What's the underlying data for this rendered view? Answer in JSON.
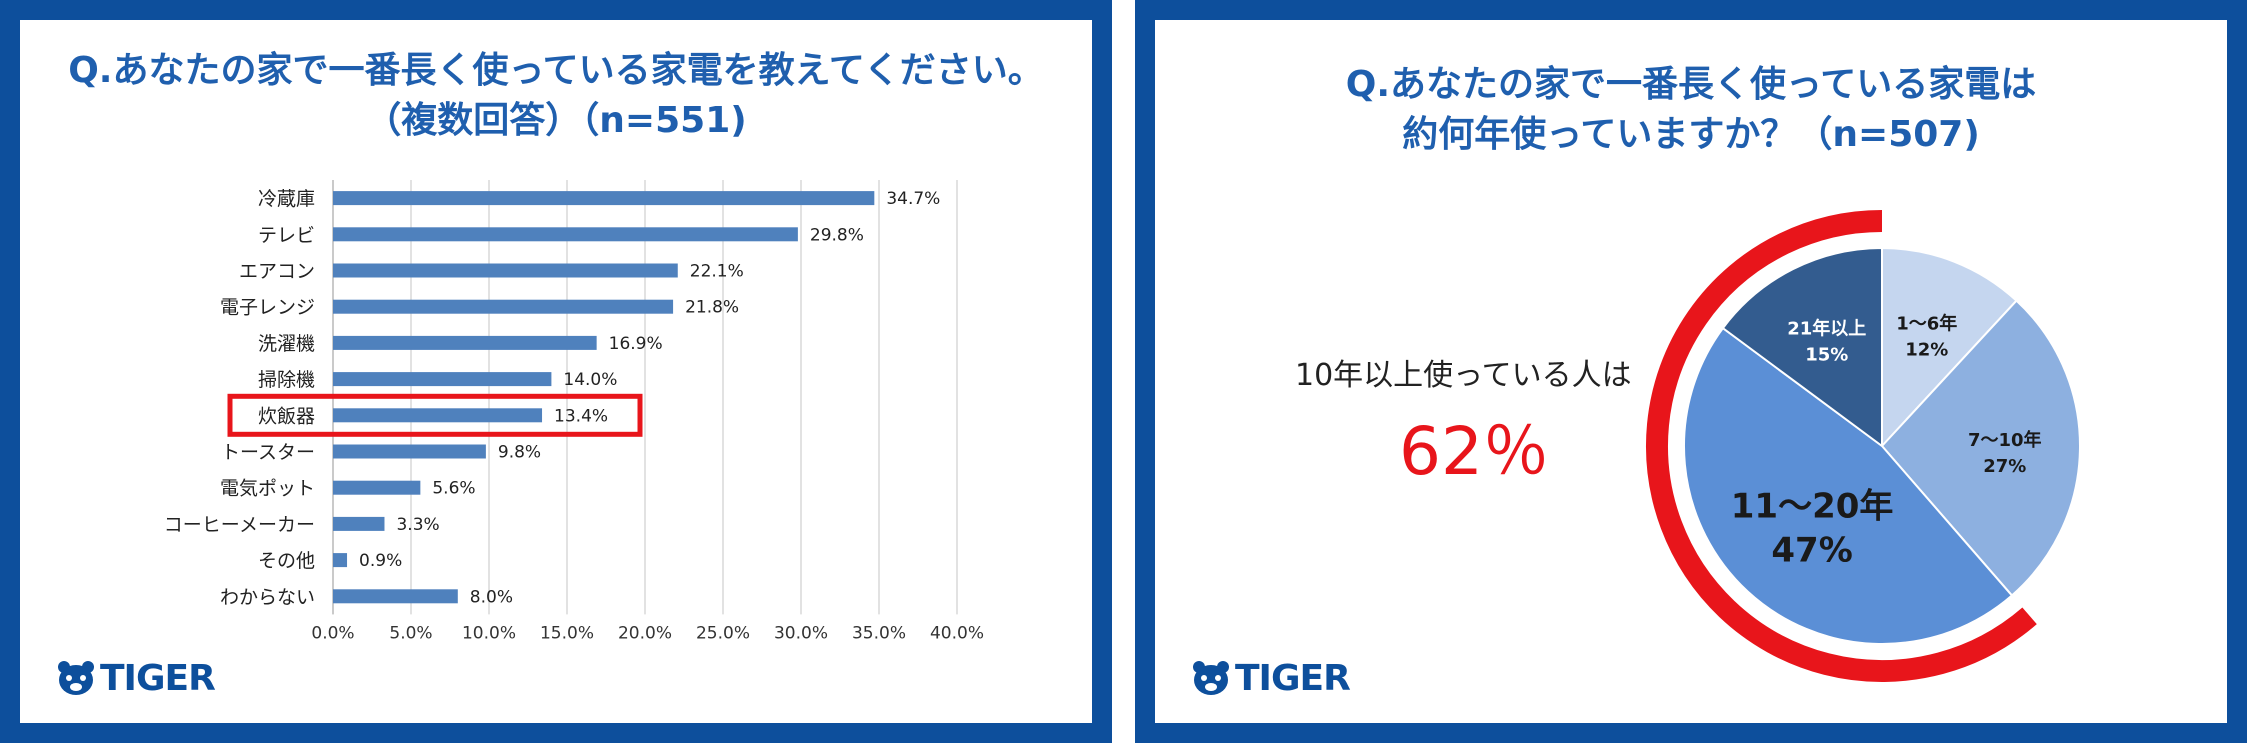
{
  "left": {
    "title_line1": "Q.あなたの家で一番長く使っている家電を教えてください。",
    "title_line2": "（複数回答）（n=551)"
  },
  "right": {
    "title_line1": "Q.あなたの家で一番長く使っている家電は",
    "title_line2": "約何年使っていますか？（n=507)",
    "callout_label": "10年以上使っている人は",
    "callout_value": "62％"
  },
  "brand": {
    "logo_text": "TIGER",
    "frame_color": "#0d4f9c",
    "highlight_color": "#e8151b"
  },
  "chart_data": [
    {
      "type": "bar",
      "orientation": "horizontal",
      "categories": [
        "冷蔵庫",
        "テレビ",
        "エアコン",
        "電子レンジ",
        "洗濯機",
        "掃除機",
        "炊飯器",
        "トースター",
        "電気ポット",
        "コーヒーメーカー",
        "その他",
        "わからない"
      ],
      "values": [
        34.7,
        29.8,
        22.1,
        21.8,
        16.9,
        14.0,
        13.4,
        9.8,
        5.6,
        3.3,
        0.9,
        8.0
      ],
      "value_labels": [
        "34.7%",
        "29.8%",
        "22.1%",
        "21.8%",
        "16.9%",
        "14.0%",
        "13.4%",
        "9.8%",
        "5.6%",
        "3.3%",
        "0.9%",
        "8.0%"
      ],
      "xlim": [
        0,
        40
      ],
      "ticks": [
        0,
        5,
        10,
        15,
        20,
        25,
        30,
        35,
        40
      ],
      "tick_labels": [
        "0.0%",
        "5.0%",
        "10.0%",
        "15.0%",
        "20.0%",
        "25.0%",
        "30.0%",
        "35.0%",
        "40.0%"
      ],
      "highlighted_category": "炊飯器",
      "bar_color": "#4f81bd",
      "grid": true
    },
    {
      "type": "pie",
      "slices": [
        {
          "label": "1〜6年",
          "value": 12,
          "value_label": "12%",
          "color": "#c5d6ef"
        },
        {
          "label": "7〜10年",
          "value": 27,
          "value_label": "27%",
          "color": "#8db0e0"
        },
        {
          "label": "11〜20年",
          "value": 47,
          "value_label": "47%",
          "color": "#5b8fd6"
        },
        {
          "label": "21年以上",
          "value": 15,
          "value_label": "15%",
          "color": "#335c8f"
        }
      ],
      "highlight_arc": "10年以上 (11〜20年 + 21年以上)"
    }
  ]
}
